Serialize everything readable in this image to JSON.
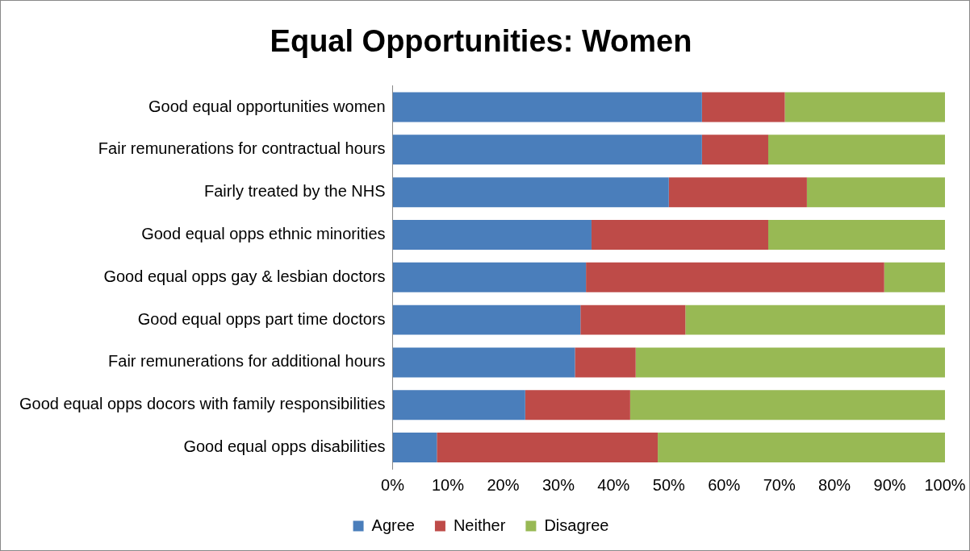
{
  "chart_data": {
    "type": "bar",
    "orientation": "horizontal",
    "stacked": true,
    "title": "Equal Opportunities: Women",
    "categories": [
      "Good equal opportunities women",
      "Fair remunerations for contractual hours",
      "Fairly treated by the NHS",
      "Good equal opps ethnic minorities",
      "Good equal opps gay & lesbian doctors",
      "Good equal opps part time doctors",
      "Fair remunerations for additional hours",
      "Good equal opps docors with family responsibilities",
      "Good equal opps disabilities"
    ],
    "series": [
      {
        "name": "Agree",
        "color": "#4a7ebb",
        "values": [
          56,
          56,
          50,
          36,
          35,
          34,
          33,
          24,
          8
        ]
      },
      {
        "name": "Neither",
        "color": "#be4b48",
        "values": [
          15,
          12,
          25,
          32,
          54,
          19,
          11,
          19,
          40
        ]
      },
      {
        "name": "Disagree",
        "color": "#98b954",
        "values": [
          29,
          32,
          25,
          32,
          11,
          47,
          56,
          57,
          52
        ]
      }
    ],
    "xlim": [
      0,
      100
    ],
    "xticks": [
      {
        "value": 0,
        "label": "0%"
      },
      {
        "value": 10,
        "label": "10%"
      },
      {
        "value": 20,
        "label": "20%"
      },
      {
        "value": 30,
        "label": "30%"
      },
      {
        "value": 40,
        "label": "40%"
      },
      {
        "value": 50,
        "label": "50%"
      },
      {
        "value": 60,
        "label": "60%"
      },
      {
        "value": 70,
        "label": "70%"
      },
      {
        "value": 80,
        "label": "80%"
      },
      {
        "value": 90,
        "label": "90%"
      },
      {
        "value": 100,
        "label": "100%"
      }
    ],
    "grid": false,
    "legend": "bottom"
  }
}
